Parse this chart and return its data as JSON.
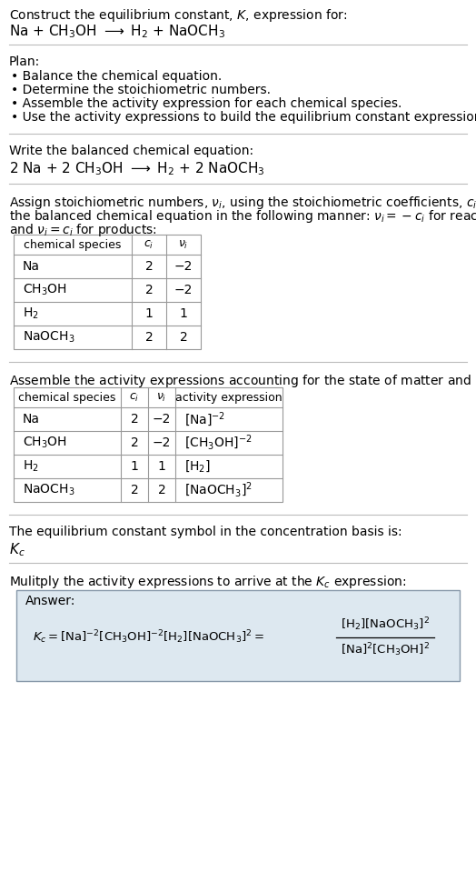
{
  "title_line1": "Construct the equilibrium constant, $K$, expression for:",
  "title_line2": "Na + CH$_3$OH $\\longrightarrow$ H$_2$ + NaOCH$_3$",
  "plan_header": "Plan:",
  "plan_items": [
    "• Balance the chemical equation.",
    "• Determine the stoichiometric numbers.",
    "• Assemble the activity expression for each chemical species.",
    "• Use the activity expressions to build the equilibrium constant expression."
  ],
  "balanced_header": "Write the balanced chemical equation:",
  "balanced_eq": "2 Na + 2 CH$_3$OH $\\longrightarrow$ H$_2$ + 2 NaOCH$_3$",
  "stoich_intro1": "Assign stoichiometric numbers, $\\nu_i$, using the stoichiometric coefficients, $c_i$, from",
  "stoich_intro2": "the balanced chemical equation in the following manner: $\\nu_i = -c_i$ for reactants",
  "stoich_intro3": "and $\\nu_i = c_i$ for products:",
  "table1_headers": [
    "chemical species",
    "$c_i$",
    "$\\nu_i$"
  ],
  "table1_rows": [
    [
      "Na",
      "2",
      "−2"
    ],
    [
      "CH$_3$OH",
      "2",
      "−2"
    ],
    [
      "H$_2$",
      "1",
      "1"
    ],
    [
      "NaOCH$_3$",
      "2",
      "2"
    ]
  ],
  "activity_intro": "Assemble the activity expressions accounting for the state of matter and $\\nu_i$:",
  "table2_headers": [
    "chemical species",
    "$c_i$",
    "$\\nu_i$",
    "activity expression"
  ],
  "table2_rows": [
    [
      "Na",
      "2",
      "−2",
      "[Na]$^{-2}$"
    ],
    [
      "CH$_3$OH",
      "2",
      "−2",
      "[CH$_3$OH]$^{-2}$"
    ],
    [
      "H$_2$",
      "1",
      "1",
      "[H$_2$]"
    ],
    [
      "NaOCH$_3$",
      "2",
      "2",
      "[NaOCH$_3$]$^2$"
    ]
  ],
  "kc_symbol_text": "The equilibrium constant symbol in the concentration basis is:",
  "kc_symbol": "$K_c$",
  "multiply_text": "Mulitply the activity expressions to arrive at the $K_c$ expression:",
  "answer_label": "Answer:",
  "bg_color": "#ffffff",
  "table_border_color": "#999999",
  "answer_bg_color": "#dde8f0",
  "answer_border_color": "#8899aa",
  "text_color": "#000000",
  "font_size": 10,
  "separator_color": "#bbbbbb"
}
